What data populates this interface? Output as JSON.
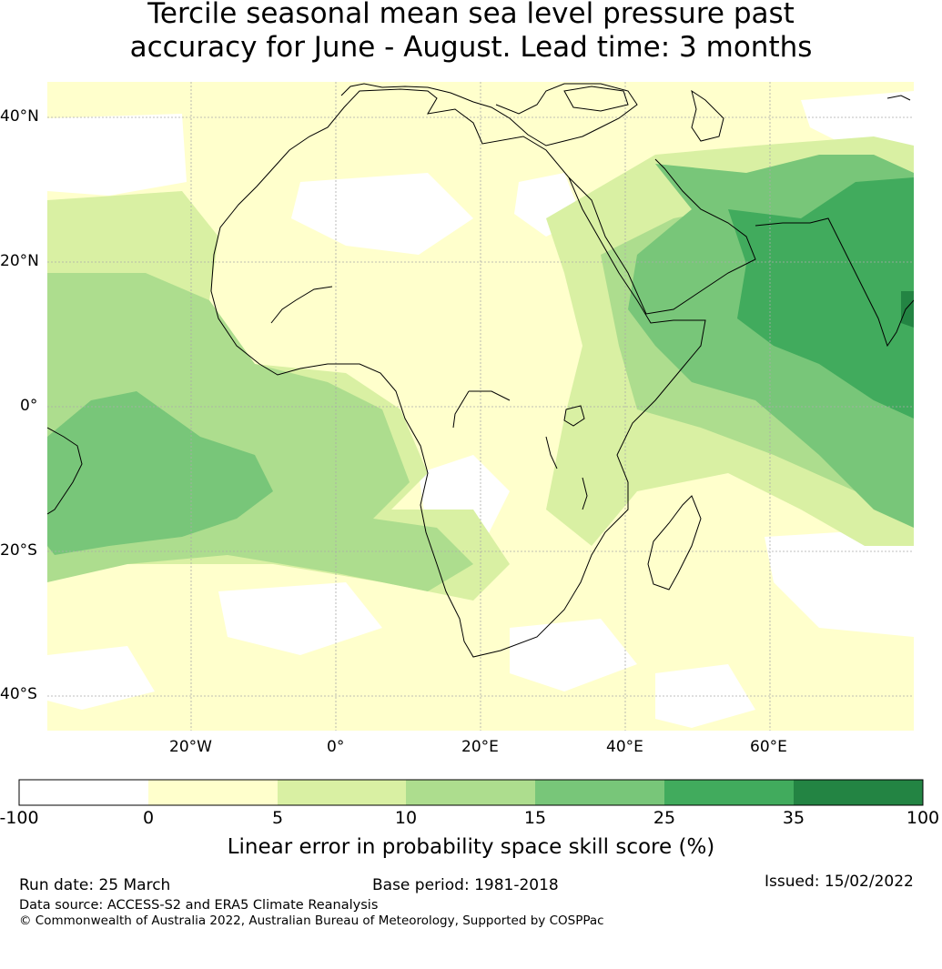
{
  "title": {
    "line1": "Tercile seasonal mean sea level pressure past",
    "line2": "accuracy for June - August. Lead time: 3 months"
  },
  "map": {
    "lat_labels": [
      "40°N",
      "20°N",
      "0°",
      "20°S",
      "40°S"
    ],
    "lon_labels": [
      "20°W",
      "0°",
      "20°E",
      "40°E",
      "60°E"
    ],
    "extent": {
      "lon": [
        -40,
        80
      ],
      "lat": [
        -45,
        45
      ]
    }
  },
  "colorbar": {
    "ticks": [
      "-100",
      "0",
      "5",
      "10",
      "15",
      "25",
      "35",
      "100"
    ],
    "colors": [
      "#ffffff",
      "#ffffcc",
      "#d9f0a3",
      "#addd8e",
      "#78c679",
      "#41ab5d",
      "#238443"
    ],
    "label": "Linear error in probability space skill score (%)"
  },
  "footer": {
    "run_date": "Run date: 25 March",
    "base_period": "Base period: 1981-2018",
    "issued": "Issued: 15/02/2022",
    "data_source": "Data source: ACCESS-S2 and ERA5 Climate Reanalysis",
    "copyright": "© Commonwealth of Australia 2022, Australian Bureau of Meteorology, Supported by COSPPac"
  }
}
